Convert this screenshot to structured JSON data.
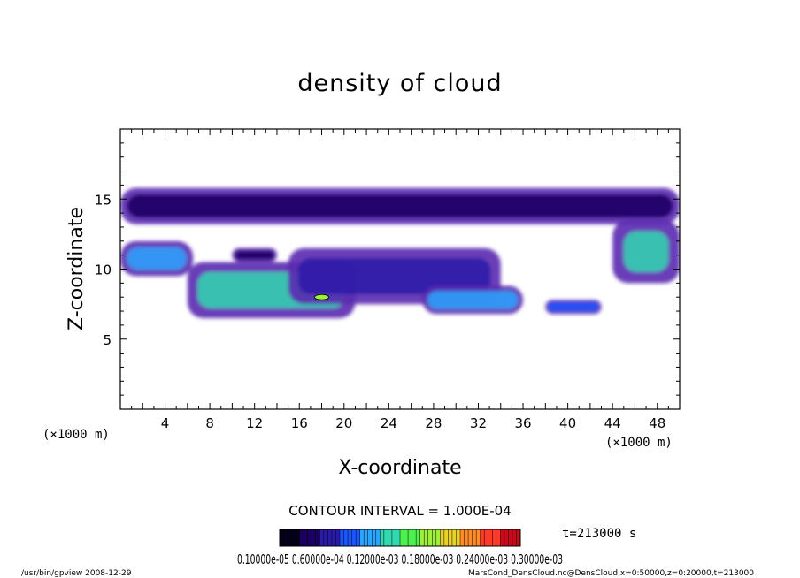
{
  "chart_data": {
    "type": "heatmap",
    "title": "density of cloud",
    "xlabel": "X-coordinate",
    "ylabel": "Z-coordinate",
    "x_unit": "(×1000 m)",
    "y_unit": "(×1000 m)",
    "xlim": [
      0,
      50
    ],
    "ylim": [
      0,
      20
    ],
    "x_ticks": [
      4,
      8,
      12,
      16,
      20,
      24,
      28,
      32,
      36,
      40,
      44,
      48
    ],
    "y_ticks": [
      5,
      10,
      15
    ],
    "contour_interval": "CONTOUR INTERVAL = 1.000E-04",
    "time_label": "t=213000 s",
    "colorbar_labels": "0.10000e-05 0.60000e-04 0.12000e-03 0.18000e-03 0.24000e-03 0.30000e-03",
    "colorbar_range": [
      1e-07,
      0.0003
    ],
    "colorbar_colors": [
      "#05001a",
      "#1a0060",
      "#2a1aa8",
      "#1a55ff",
      "#2aa6ff",
      "#32d8b0",
      "#4ef04e",
      "#9ef03a",
      "#e8d22a",
      "#ff8a2a",
      "#ff3a2a",
      "#c80a1a"
    ],
    "cloud_regions": [
      {
        "x0": 0,
        "x1": 50,
        "z0": 13.2,
        "z1": 15.8,
        "level": 4e-05
      },
      {
        "x0": 0,
        "x1": 6.5,
        "z0": 9.5,
        "z1": 12.0,
        "level": 0.00012
      },
      {
        "x0": 10,
        "x1": 14,
        "z0": 10.5,
        "z1": 11.5,
        "level": 5e-05
      },
      {
        "x0": 6,
        "x1": 21,
        "z0": 6.5,
        "z1": 10.5,
        "level": 0.00013
      },
      {
        "x0": 15,
        "x1": 34,
        "z0": 7.5,
        "z1": 11.5,
        "level": 7e-05
      },
      {
        "x0": 27,
        "x1": 36,
        "z0": 6.8,
        "z1": 8.8,
        "level": 0.00012
      },
      {
        "x0": 38,
        "x1": 43,
        "z0": 6.8,
        "z1": 7.8,
        "level": 0.0001
      },
      {
        "x0": 44,
        "x1": 50,
        "z0": 9.0,
        "z1": 13.5,
        "level": 0.00014
      }
    ],
    "max_point": {
      "x": 18,
      "z": 8.0,
      "level": 0.0002
    }
  },
  "footer": {
    "left": "/usr/bin/gpview  2008-12-29",
    "right": "MarsCond_DensCloud.nc@DensCloud,x=0:50000,z=0:20000,t=213000"
  }
}
